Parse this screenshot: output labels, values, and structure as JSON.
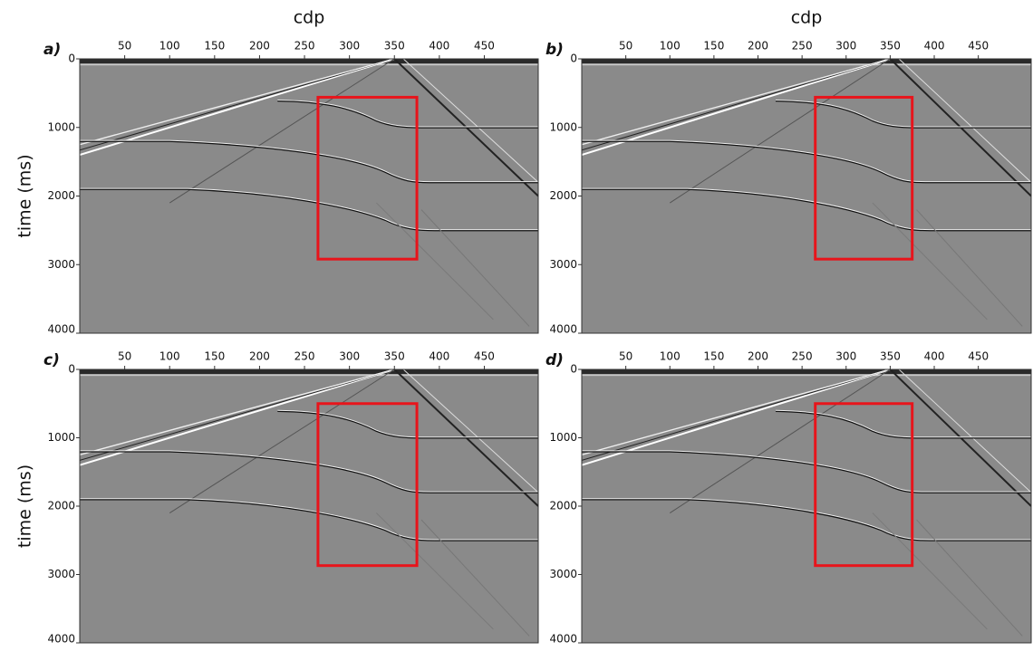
{
  "chart_data": [
    {
      "type": "seismic",
      "panel_label": "a)",
      "xlabel": "cdp",
      "ylabel": "time (ms)",
      "xlim": [
        0,
        510
      ],
      "ylim": [
        0,
        4000
      ],
      "xticks": [
        50,
        100,
        150,
        200,
        250,
        300,
        350,
        400,
        450
      ],
      "yticks": [
        0,
        1000,
        2000,
        3000,
        4000
      ],
      "highlight": {
        "x": [
          265,
          375
        ],
        "y": [
          560,
          2920
        ],
        "color": "#e8141b"
      }
    },
    {
      "type": "seismic",
      "panel_label": "b)",
      "xlabel": "cdp",
      "xlim": [
        0,
        510
      ],
      "ylim": [
        0,
        4000
      ],
      "xticks": [
        50,
        100,
        150,
        200,
        250,
        300,
        350,
        400,
        450
      ],
      "yticks": [
        0,
        1000,
        2000,
        3000,
        4000
      ],
      "highlight": {
        "x": [
          265,
          375
        ],
        "y": [
          560,
          2920
        ],
        "color": "#e8141b"
      }
    },
    {
      "type": "seismic",
      "panel_label": "c)",
      "ylabel": "time (ms)",
      "xlim": [
        0,
        510
      ],
      "ylim": [
        0,
        4000
      ],
      "xticks": [
        50,
        100,
        150,
        200,
        250,
        300,
        350,
        400,
        450
      ],
      "yticks": [
        0,
        1000,
        2000,
        3000,
        4000
      ],
      "highlight": {
        "x": [
          265,
          375
        ],
        "y": [
          500,
          2870
        ],
        "color": "#e8141b"
      }
    },
    {
      "type": "seismic",
      "panel_label": "d)",
      "xlim": [
        0,
        510
      ],
      "ylim": [
        0,
        4000
      ],
      "xticks": [
        50,
        100,
        150,
        200,
        250,
        300,
        350,
        400,
        450
      ],
      "yticks": [
        0,
        1000,
        2000,
        3000,
        4000
      ],
      "highlight": {
        "x": [
          265,
          375
        ],
        "y": [
          500,
          2870
        ],
        "color": "#e8141b"
      }
    }
  ]
}
